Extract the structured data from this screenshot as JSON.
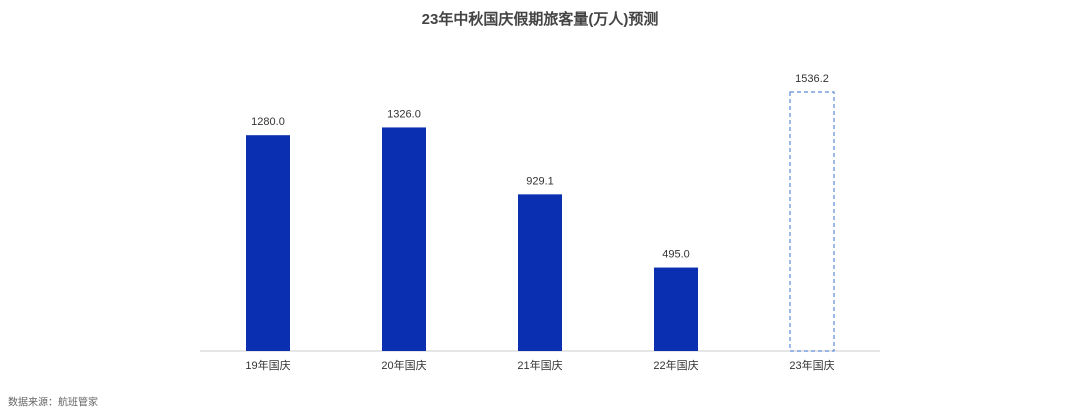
{
  "chart_data": {
    "type": "bar",
    "title": "23年中秋国庆假期旅客量(万人)预测",
    "categories": [
      "19年国庆",
      "20年国庆",
      "21年国庆",
      "22年国庆",
      "23年国庆"
    ],
    "values": [
      1280.0,
      1326.0,
      929.1,
      495.0,
      1536.2
    ],
    "value_labels": [
      "1280.0",
      "1326.0",
      "929.1",
      "495.0",
      "1536.2"
    ],
    "bar_styles": [
      "solid",
      "solid",
      "solid",
      "solid",
      "dashed"
    ],
    "color": "#0a2fb0",
    "dashed_color": "#5b8bd6",
    "source": "数据来源：航班管家"
  }
}
